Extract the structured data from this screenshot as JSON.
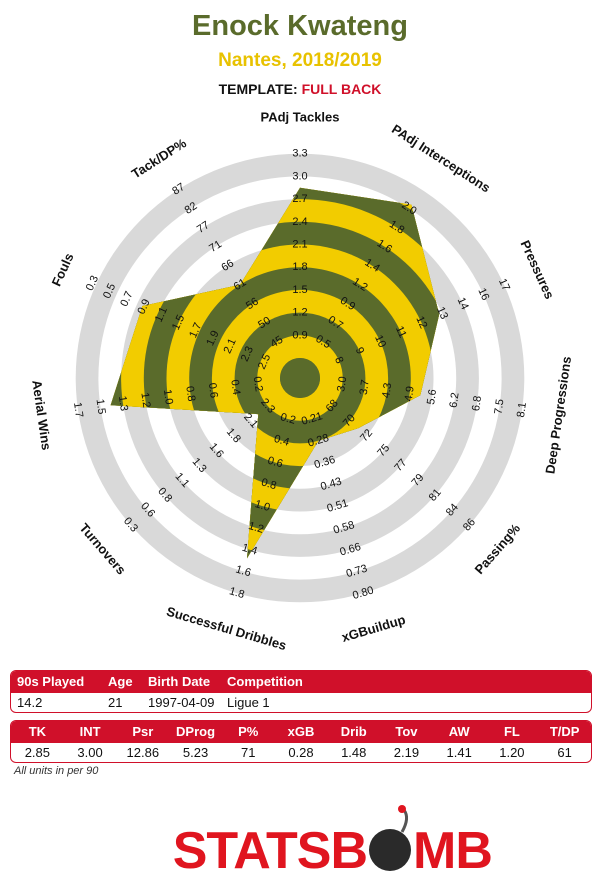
{
  "header": {
    "player": "Enock Kwateng",
    "team_season": "Nantes, 2018/2019",
    "template_label": "TEMPLATE:",
    "template_value": "FULL BACK"
  },
  "colors": {
    "olive": "#5a6b2b",
    "yellow": "#f2cc00",
    "ring_grey": "#d9d9d9",
    "red": "#d0102a"
  },
  "chart_data": {
    "type": "radar",
    "axes": [
      {
        "label": "PAdj Tackles",
        "ticks": [
          "0.9",
          "1.2",
          "1.5",
          "1.8",
          "2.1",
          "2.4",
          "2.7",
          "3.0",
          "3.3"
        ],
        "value": 2.85
      },
      {
        "label": "PAdj Interceptions",
        "ticks": [
          "0.5",
          "0.7",
          "0.9",
          "1.2",
          "1.4",
          "1.6",
          "1.8",
          "2.0"
        ],
        "value": 3.0
      },
      {
        "label": "Pressures",
        "ticks": [
          "8",
          "9",
          "10",
          "11",
          "12",
          "13",
          "14",
          "16",
          "17"
        ],
        "value": 12.86
      },
      {
        "label": "Deep Progressions",
        "ticks": [
          "3.0",
          "3.7",
          "4.3",
          "4.9",
          "5.6",
          "6.2",
          "6.8",
          "7.5",
          "8.1"
        ],
        "value": 5.23
      },
      {
        "label": "Passing%",
        "ticks": [
          "68",
          "70",
          "72",
          "75",
          "77",
          "79",
          "81",
          "84",
          "86"
        ],
        "value": 71
      },
      {
        "label": "xGBuildup",
        "ticks": [
          "0.21",
          "0.28",
          "0.36",
          "0.43",
          "0.51",
          "0.58",
          "0.66",
          "0.73",
          "0.80"
        ],
        "value": 0.28
      },
      {
        "label": "Successful Dribbles",
        "ticks": [
          "0.2",
          "0.4",
          "0.6",
          "0.8",
          "1.0",
          "1.2",
          "1.4",
          "1.6",
          "1.8"
        ],
        "value": 1.48
      },
      {
        "label": "Turnovers",
        "ticks": [
          "2.3",
          "2.1",
          "1.8",
          "1.6",
          "1.3",
          "1.1",
          "0.8",
          "0.6",
          "0.3"
        ],
        "value": 2.19
      },
      {
        "label": "Aerial Wins",
        "ticks": [
          "0.2",
          "0.4",
          "0.6",
          "0.8",
          "1.0",
          "1.2",
          "1.3",
          "1.5",
          "1.7"
        ],
        "value": 1.41
      },
      {
        "label": "Fouls",
        "ticks": [
          "2.5",
          "2.3",
          "2.1",
          "1.9",
          "1.7",
          "1.5",
          "1.1",
          "0.9",
          "0.7",
          "0.5",
          "0.3"
        ],
        "value": 1.2
      },
      {
        "label": "Tack/DP%",
        "ticks": [
          "45",
          "50",
          "56",
          "61",
          "66",
          "71",
          "77",
          "82",
          "87"
        ],
        "value": 61
      }
    ],
    "ring_count": 9,
    "ring_colors_inside": [
      "olive",
      "yellow"
    ],
    "ring_colors_outside": [
      "ring_grey",
      "white"
    ]
  },
  "info_table": {
    "headers": [
      "90s Played",
      "Age",
      "Birth Date",
      "Competition"
    ],
    "row": [
      "14.2",
      "21",
      "1997-04-09",
      "Ligue 1"
    ]
  },
  "stats_table": {
    "headers": [
      "TK",
      "INT",
      "Psr",
      "DProg",
      "P%",
      "xGB",
      "Drib",
      "Tov",
      "AW",
      "FL",
      "T/DP"
    ],
    "row": [
      "2.85",
      "3.00",
      "12.86",
      "5.23",
      "71",
      "0.28",
      "1.48",
      "2.19",
      "1.41",
      "1.20",
      "61"
    ]
  },
  "footnote": "All units in per 90",
  "logo": {
    "text_left": "STATSB",
    "text_right": "MB"
  }
}
